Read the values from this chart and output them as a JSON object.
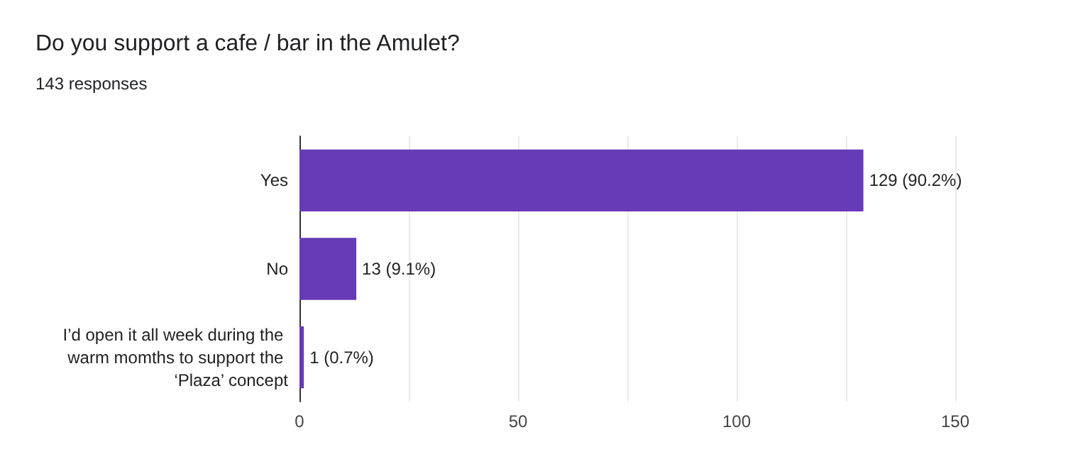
{
  "chart_data": {
    "type": "bar",
    "orientation": "horizontal",
    "title": "Do you support a cafe / bar in the Amulet?",
    "subtitle": "143 responses",
    "categories": [
      "Yes",
      "No",
      "I’d open it all week during the warm momths to support the ‘Plaza’ concept"
    ],
    "values": [
      129,
      13,
      1
    ],
    "value_labels": [
      "129 (90.2%)",
      "13 (9.1%)",
      "1 (0.7%)"
    ],
    "color": "#673ab7",
    "xlim": [
      0,
      150
    ],
    "xticks": [
      0,
      {
        "value": 25,
        "label": null
      },
      50,
      {
        "value": 75,
        "label": null
      },
      100,
      {
        "value": 125,
        "label": null
      },
      150
    ],
    "grid": "x"
  }
}
